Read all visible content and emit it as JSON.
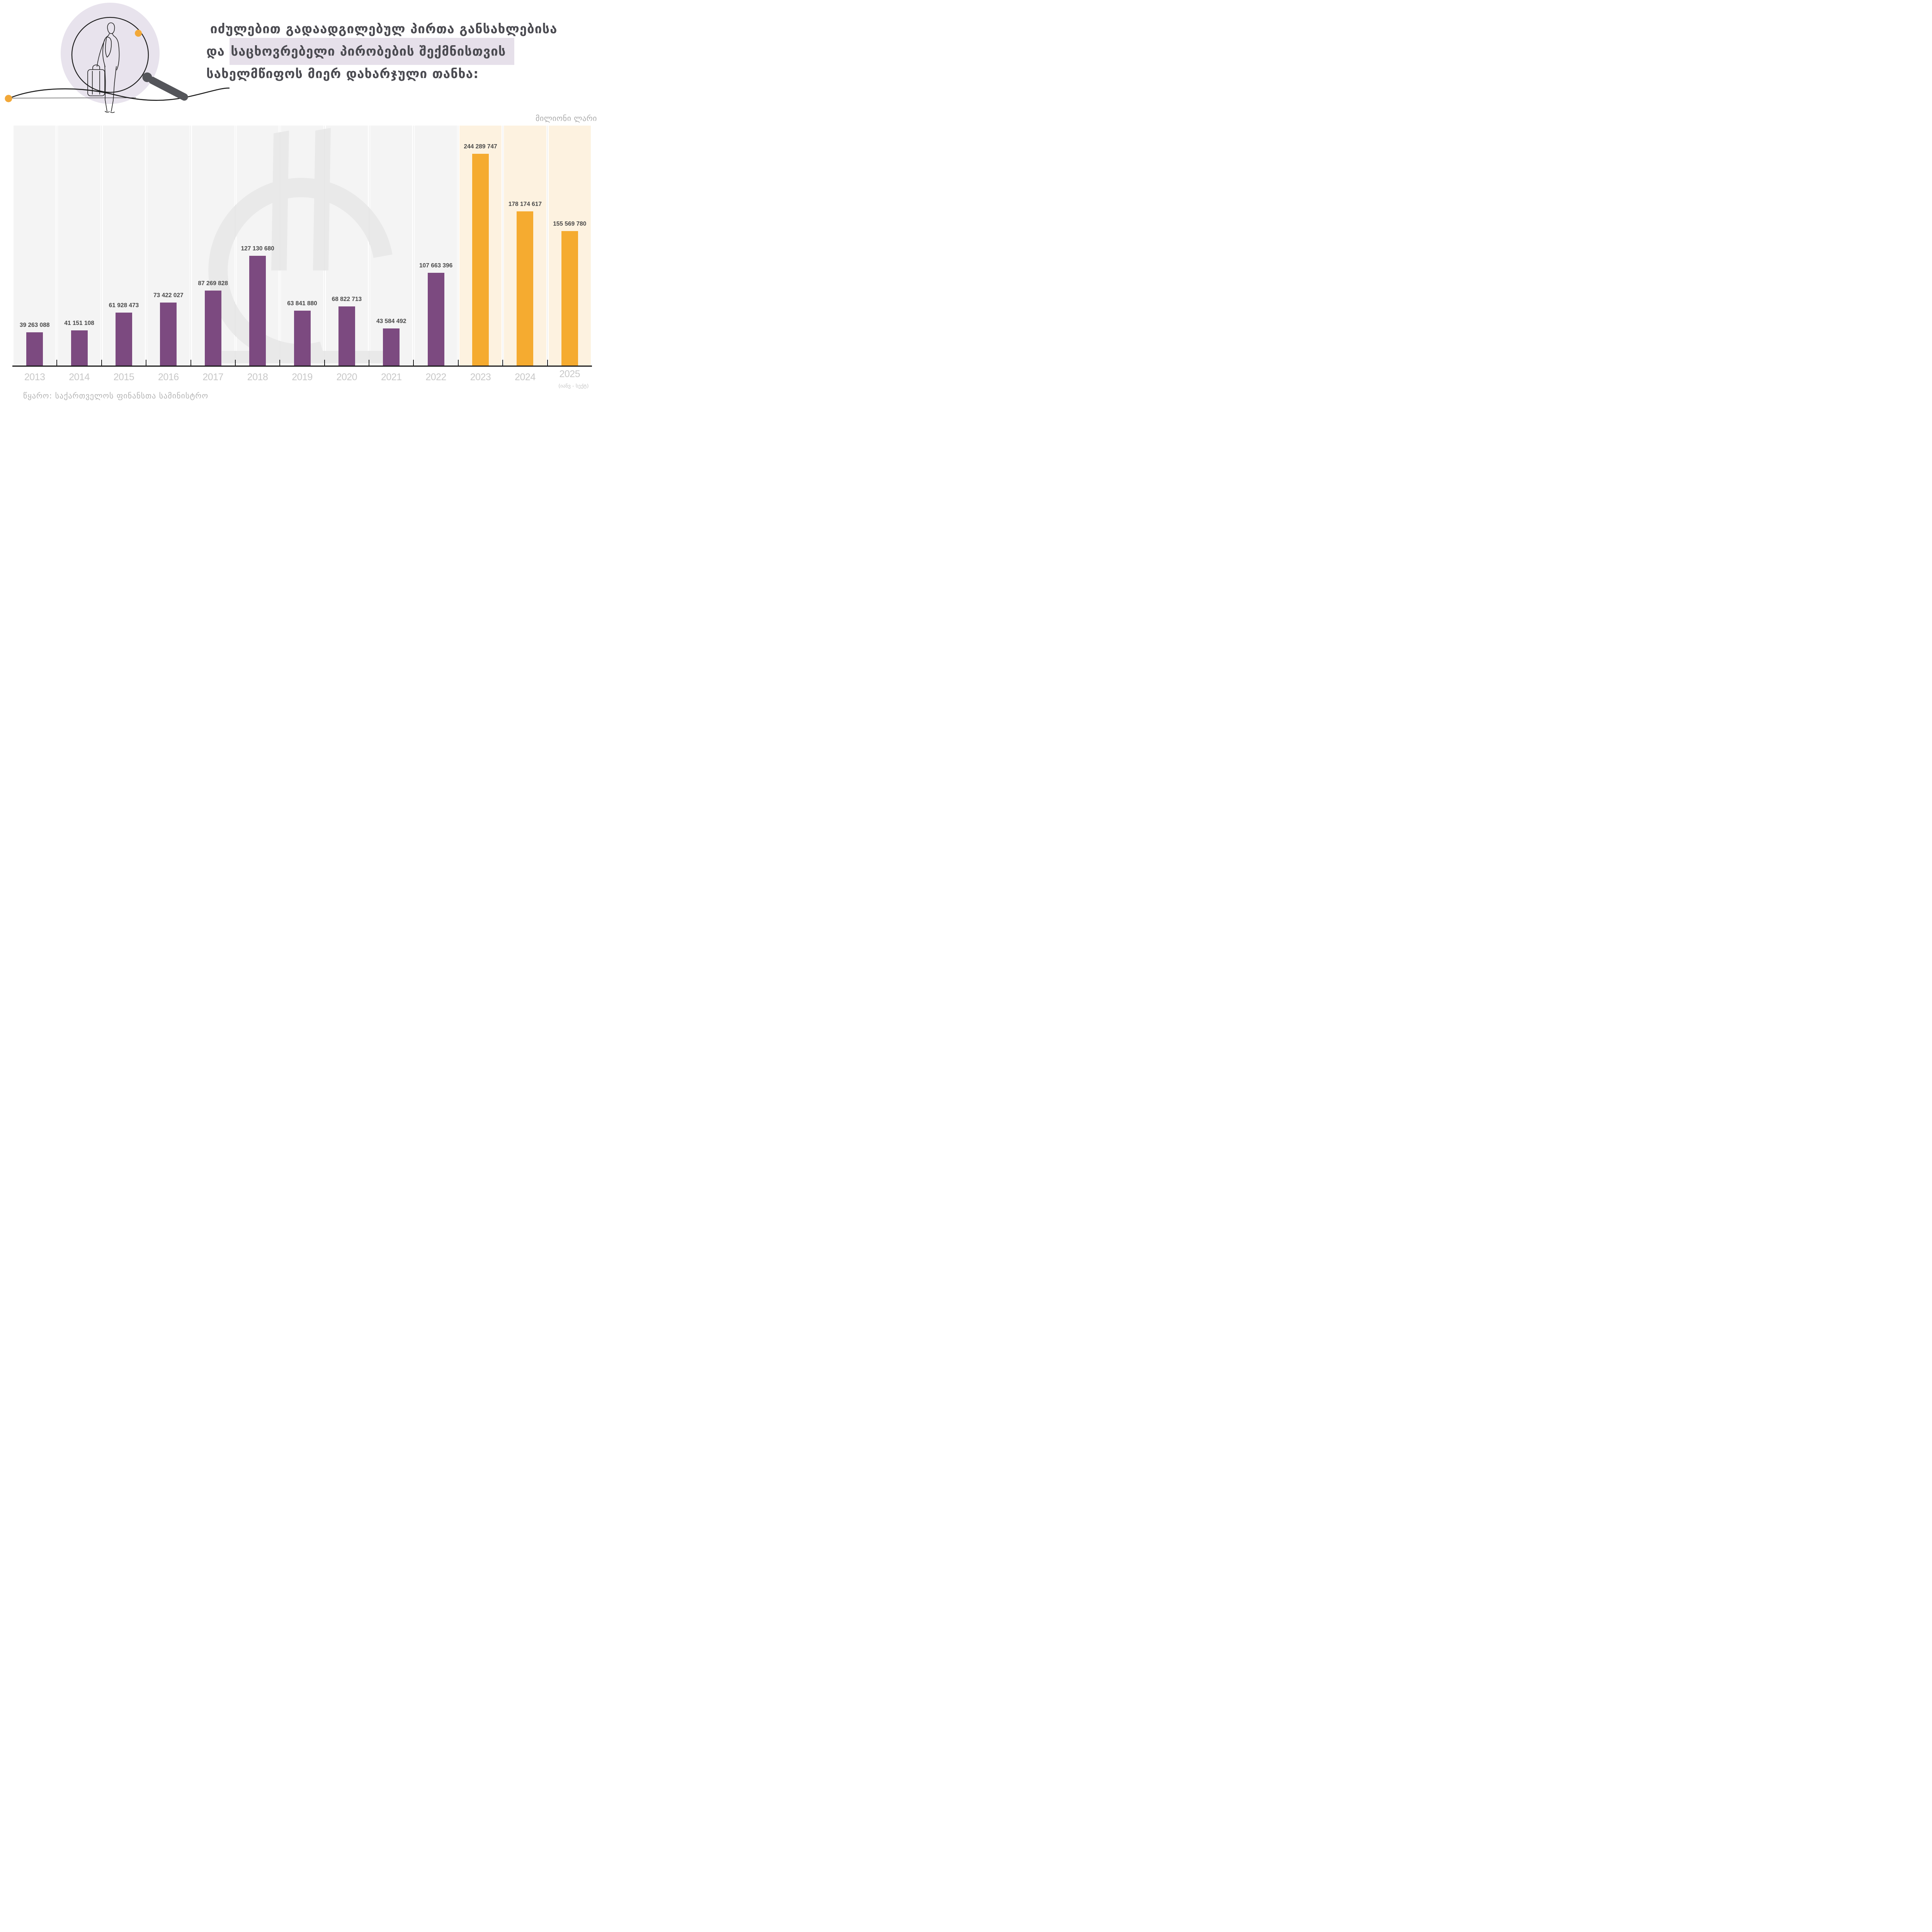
{
  "title": {
    "line1": "იძულებით გადაადგილებულ პირთა განსახლებისა",
    "line2_prefix": "და ",
    "line2_highlighted": "საცხოვრებელი პირობების შექმნისთვის",
    "line3": "სახელმწიფოს მიერ დახარჯული თანხა:"
  },
  "unit_label": "მილიონი ლარი",
  "source": "წყარო: საქართველოს ფინანსთა სამინისტრო",
  "illustration": {
    "traveler_icon": "person-with-suitcase-line-art",
    "magnifier_icon": "magnifying-glass",
    "accent_dot_icon": "orange-dot"
  },
  "colors": {
    "bar_purple": "#7c4a80",
    "bar_orange": "#f5ab30",
    "band_gray": "#f4f4f4",
    "band_cream": "#fdf2e0",
    "highlight_lavender": "#e6e0ea",
    "blob_lavender": "#e8e3ed",
    "watermark_gray": "#e9e9e9",
    "accent_orange": "#f2a838",
    "axis_black": "#1a1a1a"
  },
  "chart_data": {
    "type": "bar",
    "title": "იძულებით გადაადგილებულ პირთა განსახლებისა და საცხოვრებელი პირობების შექმნისთვის სახელმწიფოს მიერ დახარჯული თანხა",
    "unit": "მილიონი ლარი",
    "xlabel": "",
    "ylabel": "",
    "ylim": [
      0,
      250000000
    ],
    "grid": "off",
    "legend": "none",
    "categories": [
      "2013",
      "2014",
      "2015",
      "2016",
      "2017",
      "2018",
      "2019",
      "2020",
      "2021",
      "2022",
      "2023",
      "2024",
      "2025"
    ],
    "values": [
      39263088,
      41151108,
      61928473,
      73422027,
      87269828,
      127130680,
      63841880,
      68822713,
      43584492,
      107663396,
      244289747,
      178174617,
      155569780
    ],
    "value_labels": [
      "39 263 088",
      "41 151 108",
      "61 928 473",
      "73 422 027",
      "87 269 828",
      "127 130 680",
      "63 841 880",
      "68 822 713",
      "43 584 492",
      "107 663 396",
      "244 289 747",
      "178 174 617",
      "155 569 780"
    ],
    "highlighted_categories": [
      "2023",
      "2024",
      "2025"
    ],
    "category_notes": {
      "2025": "(იანვ - სექტ)"
    },
    "source": "წყარო: საქართველოს ფინანსთა სამინისტრო"
  }
}
